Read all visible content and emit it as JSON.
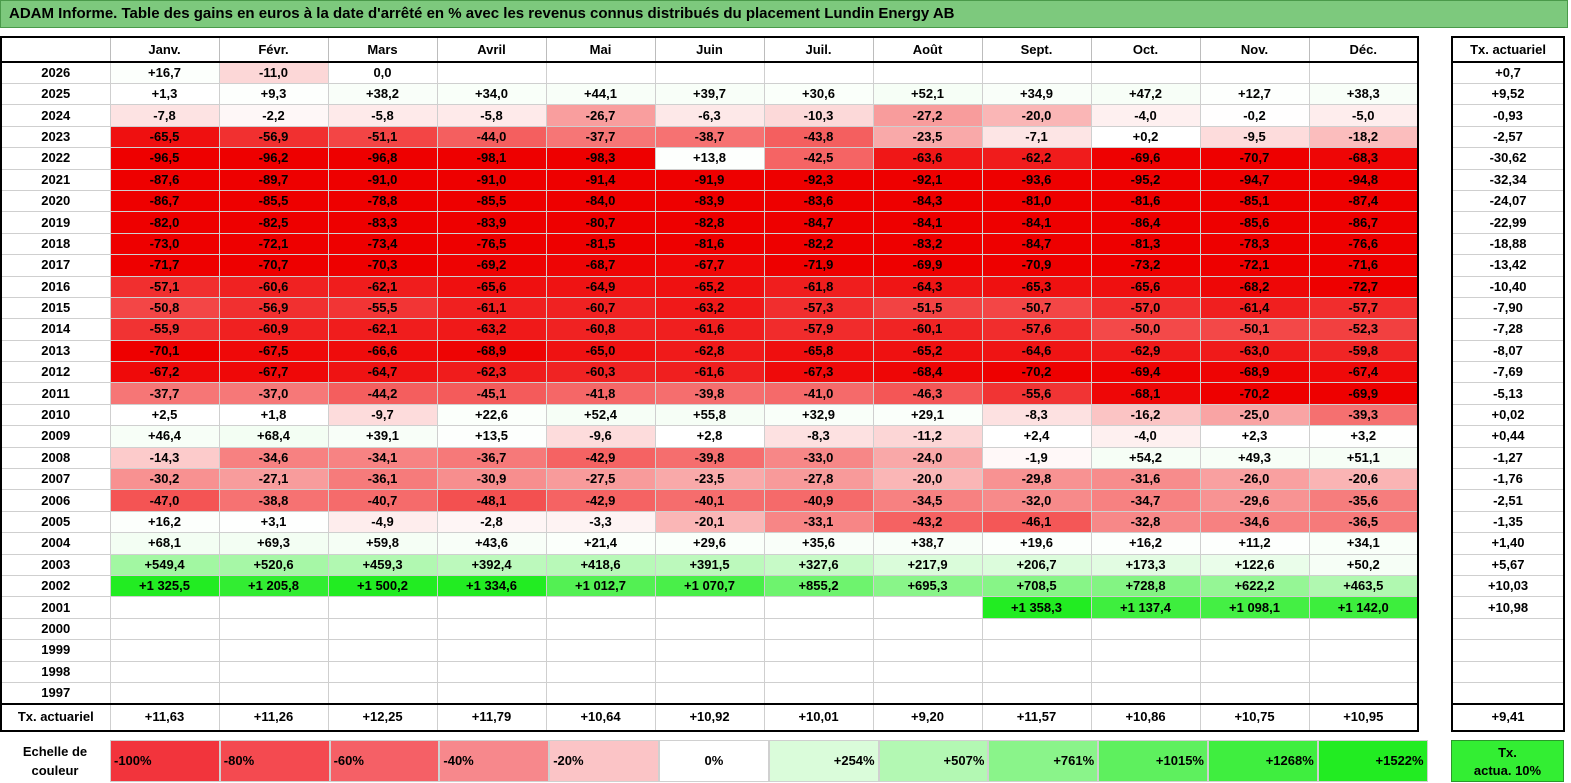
{
  "title": "ADAM Informe. Table des gains en euros à la date d'arrêté en % avec les revenus connus distribués du placement Lundin Energy AB",
  "months": [
    "Janv.",
    "Févr.",
    "Mars",
    "Avril",
    "Mai",
    "Juin",
    "Juil.",
    "Août",
    "Sept.",
    "Oct.",
    "Nov.",
    "Déc."
  ],
  "rate_header": "Tx. actuariel",
  "rows": [
    {
      "year": "2026",
      "values": [
        "+16,7",
        "-11,0",
        "0,0",
        "",
        "",
        "",
        "",
        "",
        "",
        "",
        "",
        ""
      ],
      "rate": "+0,7"
    },
    {
      "year": "2025",
      "values": [
        "+1,3",
        "+9,3",
        "+38,2",
        "+34,0",
        "+44,1",
        "+39,7",
        "+30,6",
        "+52,1",
        "+34,9",
        "+47,2",
        "+12,7",
        "+38,3"
      ],
      "rate": "+9,52"
    },
    {
      "year": "2024",
      "values": [
        "-7,8",
        "-2,2",
        "-5,8",
        "-5,8",
        "-26,7",
        "-6,3",
        "-10,3",
        "-27,2",
        "-20,0",
        "-4,0",
        "-0,2",
        "-5,0"
      ],
      "rate": "-0,93"
    },
    {
      "year": "2023",
      "values": [
        "-65,5",
        "-56,9",
        "-51,1",
        "-44,0",
        "-37,7",
        "-38,7",
        "-43,8",
        "-23,5",
        "-7,1",
        "+0,2",
        "-9,5",
        "-18,2"
      ],
      "rate": "-2,57"
    },
    {
      "year": "2022",
      "values": [
        "-96,5",
        "-96,2",
        "-96,8",
        "-98,1",
        "-98,3",
        "+13,8",
        "-42,5",
        "-63,6",
        "-62,2",
        "-69,6",
        "-70,7",
        "-68,3"
      ],
      "rate": "-30,62"
    },
    {
      "year": "2021",
      "values": [
        "-87,6",
        "-89,7",
        "-91,0",
        "-91,0",
        "-91,4",
        "-91,9",
        "-92,3",
        "-92,1",
        "-93,6",
        "-95,2",
        "-94,7",
        "-94,8"
      ],
      "rate": "-32,34"
    },
    {
      "year": "2020",
      "values": [
        "-86,7",
        "-85,5",
        "-78,8",
        "-85,5",
        "-84,0",
        "-83,9",
        "-83,6",
        "-84,3",
        "-81,0",
        "-81,6",
        "-85,1",
        "-87,4"
      ],
      "rate": "-24,07"
    },
    {
      "year": "2019",
      "values": [
        "-82,0",
        "-82,5",
        "-83,3",
        "-83,9",
        "-80,7",
        "-82,8",
        "-84,7",
        "-84,1",
        "-84,1",
        "-86,4",
        "-85,6",
        "-86,7"
      ],
      "rate": "-22,99"
    },
    {
      "year": "2018",
      "values": [
        "-73,0",
        "-72,1",
        "-73,4",
        "-76,5",
        "-81,5",
        "-81,6",
        "-82,2",
        "-83,2",
        "-84,7",
        "-81,3",
        "-78,3",
        "-76,6"
      ],
      "rate": "-18,88"
    },
    {
      "year": "2017",
      "values": [
        "-71,7",
        "-70,7",
        "-70,3",
        "-69,2",
        "-68,7",
        "-67,7",
        "-71,9",
        "-69,9",
        "-70,9",
        "-73,2",
        "-72,1",
        "-71,6"
      ],
      "rate": "-13,42"
    },
    {
      "year": "2016",
      "values": [
        "-57,1",
        "-60,6",
        "-62,1",
        "-65,6",
        "-64,9",
        "-65,2",
        "-61,8",
        "-64,3",
        "-65,3",
        "-65,6",
        "-68,2",
        "-72,7"
      ],
      "rate": "-10,40"
    },
    {
      "year": "2015",
      "values": [
        "-50,8",
        "-56,9",
        "-55,5",
        "-61,1",
        "-60,7",
        "-63,2",
        "-57,3",
        "-51,5",
        "-50,7",
        "-57,0",
        "-61,4",
        "-57,7"
      ],
      "rate": "-7,90"
    },
    {
      "year": "2014",
      "values": [
        "-55,9",
        "-60,9",
        "-62,1",
        "-63,2",
        "-60,8",
        "-61,6",
        "-57,9",
        "-60,1",
        "-57,6",
        "-50,0",
        "-50,1",
        "-52,3"
      ],
      "rate": "-7,28"
    },
    {
      "year": "2013",
      "values": [
        "-70,1",
        "-67,5",
        "-66,6",
        "-68,9",
        "-65,0",
        "-62,8",
        "-65,8",
        "-65,2",
        "-64,6",
        "-62,9",
        "-63,0",
        "-59,8"
      ],
      "rate": "-8,07"
    },
    {
      "year": "2012",
      "values": [
        "-67,2",
        "-67,7",
        "-64,7",
        "-62,3",
        "-60,3",
        "-61,6",
        "-67,3",
        "-68,4",
        "-70,2",
        "-69,4",
        "-68,9",
        "-67,4"
      ],
      "rate": "-7,69"
    },
    {
      "year": "2011",
      "values": [
        "-37,7",
        "-37,0",
        "-44,2",
        "-45,1",
        "-41,8",
        "-39,8",
        "-41,0",
        "-46,3",
        "-55,6",
        "-68,1",
        "-70,2",
        "-69,9"
      ],
      "rate": "-5,13"
    },
    {
      "year": "2010",
      "values": [
        "+2,5",
        "+1,8",
        "-9,7",
        "+22,6",
        "+52,4",
        "+55,8",
        "+32,9",
        "+29,1",
        "-8,3",
        "-16,2",
        "-25,0",
        "-39,3"
      ],
      "rate": "+0,02"
    },
    {
      "year": "2009",
      "values": [
        "+46,4",
        "+68,4",
        "+39,1",
        "+13,5",
        "-9,6",
        "+2,8",
        "-8,3",
        "-11,2",
        "+2,4",
        "-4,0",
        "+2,3",
        "+3,2"
      ],
      "rate": "+0,44"
    },
    {
      "year": "2008",
      "values": [
        "-14,3",
        "-34,6",
        "-34,1",
        "-36,7",
        "-42,9",
        "-39,8",
        "-33,0",
        "-24,0",
        "-1,9",
        "+54,2",
        "+49,3",
        "+51,1"
      ],
      "rate": "-1,27"
    },
    {
      "year": "2007",
      "values": [
        "-30,2",
        "-27,1",
        "-36,1",
        "-30,9",
        "-27,5",
        "-23,5",
        "-27,8",
        "-20,0",
        "-29,8",
        "-31,6",
        "-26,0",
        "-20,6"
      ],
      "rate": "-1,76"
    },
    {
      "year": "2006",
      "values": [
        "-47,0",
        "-38,8",
        "-40,7",
        "-48,1",
        "-42,9",
        "-40,1",
        "-40,9",
        "-34,5",
        "-32,0",
        "-34,7",
        "-29,6",
        "-35,6"
      ],
      "rate": "-2,51"
    },
    {
      "year": "2005",
      "values": [
        "+16,2",
        "+3,1",
        "-4,9",
        "-2,8",
        "-3,3",
        "-20,1",
        "-33,1",
        "-43,2",
        "-46,1",
        "-32,8",
        "-34,6",
        "-36,5"
      ],
      "rate": "-1,35"
    },
    {
      "year": "2004",
      "values": [
        "+68,1",
        "+69,3",
        "+59,8",
        "+43,6",
        "+21,4",
        "+29,6",
        "+35,6",
        "+38,7",
        "+19,6",
        "+16,2",
        "+11,2",
        "+34,1"
      ],
      "rate": "+1,40"
    },
    {
      "year": "2003",
      "values": [
        "+549,4",
        "+520,6",
        "+459,3",
        "+392,4",
        "+418,6",
        "+391,5",
        "+327,6",
        "+217,9",
        "+206,7",
        "+173,3",
        "+122,6",
        "+50,2"
      ],
      "rate": "+5,67"
    },
    {
      "year": "2002",
      "values": [
        "+1 325,5",
        "+1 205,8",
        "+1 500,2",
        "+1 334,6",
        "+1 012,7",
        "+1 070,7",
        "+855,2",
        "+695,3",
        "+708,5",
        "+728,8",
        "+622,2",
        "+463,5"
      ],
      "rate": "+10,03"
    },
    {
      "year": "2001",
      "values": [
        "",
        "",
        "",
        "",
        "",
        "",
        "",
        "",
        "+1 358,3",
        "+1 137,4",
        "+1 098,1",
        "+1 142,0"
      ],
      "rate": "+10,98"
    },
    {
      "year": "2000",
      "values": [
        "",
        "",
        "",
        "",
        "",
        "",
        "",
        "",
        "",
        "",
        "",
        ""
      ],
      "rate": ""
    },
    {
      "year": "1999",
      "values": [
        "",
        "",
        "",
        "",
        "",
        "",
        "",
        "",
        "",
        "",
        "",
        ""
      ],
      "rate": ""
    },
    {
      "year": "1998",
      "values": [
        "",
        "",
        "",
        "",
        "",
        "",
        "",
        "",
        "",
        "",
        "",
        ""
      ],
      "rate": ""
    },
    {
      "year": "1997",
      "values": [
        "",
        "",
        "",
        "",
        "",
        "",
        "",
        "",
        "",
        "",
        "",
        ""
      ],
      "rate": ""
    }
  ],
  "summary": {
    "label": "Tx. actuariel",
    "values": [
      "+11,63",
      "+11,26",
      "+12,25",
      "+11,79",
      "+10,64",
      "+10,92",
      "+10,01",
      "+9,20",
      "+11,57",
      "+10,86",
      "+10,75",
      "+10,95"
    ],
    "rate": "+9,41"
  },
  "legend": {
    "label_line1": "Echelle de",
    "label_line2": "couleur",
    "steps": [
      {
        "text": "-100%",
        "color": "#f2343c"
      },
      {
        "text": "-80%",
        "color": "#f44a50"
      },
      {
        "text": "-60%",
        "color": "#f56066"
      },
      {
        "text": "-40%",
        "color": "#f7888c"
      },
      {
        "text": "-20%",
        "color": "#fbc4c6"
      },
      {
        "text": "0%",
        "color": "#ffffff"
      },
      {
        "text": "+254%",
        "color": "#dafcda"
      },
      {
        "text": "+507%",
        "color": "#b3f8b3"
      },
      {
        "text": "+761%",
        "color": "#8af48a"
      },
      {
        "text": "+1015%",
        "color": "#5ef05e"
      },
      {
        "text": "+1268%",
        "color": "#3fee3f"
      },
      {
        "text": "+1522%",
        "color": "#22ec22"
      }
    ],
    "tx_line1": "Tx.",
    "tx_line2": "actua. 10%"
  }
}
